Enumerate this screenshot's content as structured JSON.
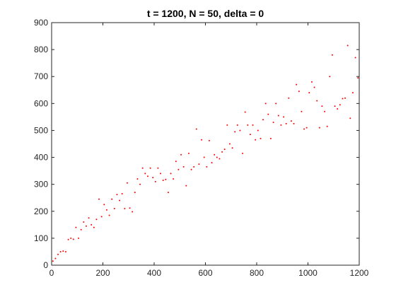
{
  "chart_data": {
    "type": "scatter",
    "title": "t = 1200, N = 50, delta = 0",
    "xlabel": "",
    "ylabel": "",
    "xlim": [
      0,
      1200
    ],
    "ylim": [
      0,
      900
    ],
    "xticks": [
      0,
      200,
      400,
      600,
      800,
      1000,
      1200
    ],
    "yticks": [
      0,
      100,
      200,
      300,
      400,
      500,
      600,
      700,
      800,
      900
    ],
    "grid": false,
    "marker_color": "#ff0000",
    "series": [
      {
        "x": [
          5,
          15,
          25,
          35,
          45,
          55,
          65,
          75,
          85,
          95,
          105,
          115,
          125,
          135,
          145,
          155,
          165,
          175,
          185,
          195,
          205,
          215,
          225,
          235,
          245,
          255,
          265,
          275,
          285,
          295,
          305,
          315,
          325,
          335,
          345,
          355,
          365,
          375,
          385,
          395,
          405,
          415,
          425,
          435,
          445,
          455,
          465,
          475,
          485,
          495,
          505,
          515,
          525,
          535,
          545,
          555,
          565,
          575,
          585,
          595,
          605,
          615,
          625,
          635,
          645,
          655,
          665,
          675,
          685,
          695,
          705,
          715,
          725,
          735,
          745,
          755,
          765,
          775,
          785,
          795,
          805,
          815,
          825,
          835,
          845,
          855,
          865,
          875,
          885,
          895,
          905,
          915,
          925,
          935,
          945,
          955,
          965,
          975,
          985,
          995,
          1005,
          1015,
          1025,
          1035,
          1045,
          1055,
          1065,
          1075,
          1085,
          1095,
          1105,
          1115,
          1125,
          1135,
          1145,
          1155,
          1165,
          1175,
          1185,
          1195
        ],
        "y": [
          15,
          25,
          40,
          50,
          52,
          50,
          95,
          100,
          96,
          140,
          100,
          132,
          160,
          145,
          175,
          150,
          140,
          170,
          245,
          180,
          225,
          205,
          185,
          245,
          210,
          262,
          240,
          265,
          210,
          305,
          212,
          198,
          270,
          320,
          300,
          360,
          340,
          330,
          360,
          325,
          310,
          360,
          340,
          315,
          318,
          270,
          340,
          320,
          385,
          355,
          410,
          365,
          295,
          415,
          355,
          365,
          505,
          375,
          465,
          400,
          365,
          462,
          380,
          410,
          400,
          395,
          420,
          430,
          520,
          450,
          435,
          495,
          520,
          500,
          415,
          568,
          520,
          485,
          520,
          465,
          500,
          470,
          540,
          600,
          560,
          470,
          530,
          600,
          555,
          520,
          550,
          525,
          620,
          535,
          525,
          670,
          645,
          570,
          505,
          510,
          640,
          680,
          660,
          610,
          510,
          590,
          570,
          515,
          700,
          780,
          590,
          580,
          595,
          618,
          620,
          815,
          545,
          640,
          770,
          695
        ]
      }
    ]
  }
}
